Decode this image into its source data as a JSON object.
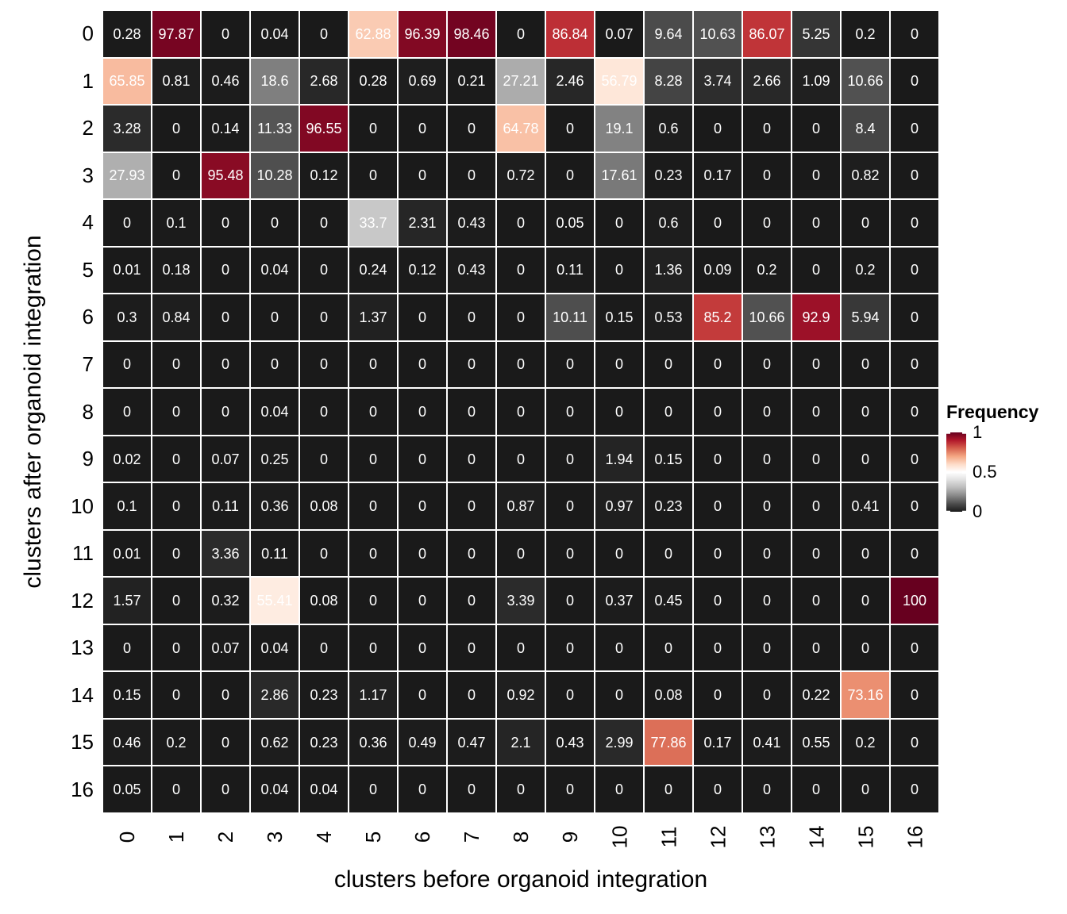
{
  "chart_data": {
    "type": "heatmap",
    "title": "",
    "xlabel": "clusters before organoid integration",
    "ylabel": "clusters after organoid integration",
    "x_categories": [
      "0",
      "1",
      "2",
      "3",
      "4",
      "5",
      "6",
      "7",
      "8",
      "9",
      "10",
      "11",
      "12",
      "13",
      "14",
      "15",
      "16"
    ],
    "y_categories": [
      "0",
      "1",
      "2",
      "3",
      "4",
      "5",
      "6",
      "7",
      "8",
      "9",
      "10",
      "11",
      "12",
      "13",
      "14",
      "15",
      "16"
    ],
    "values_are_percent_of_scale_0_to_1": true,
    "values": [
      [
        0.28,
        97.87,
        0,
        0.04,
        0,
        62.88,
        96.39,
        98.46,
        0,
        86.84,
        0.07,
        9.64,
        10.63,
        86.07,
        5.25,
        0.2,
        0
      ],
      [
        65.85,
        0.81,
        0.46,
        18.6,
        2.68,
        0.28,
        0.69,
        0.21,
        27.21,
        2.46,
        56.79,
        8.28,
        3.74,
        2.66,
        1.09,
        10.66,
        0
      ],
      [
        3.28,
        0,
        0.14,
        11.33,
        96.55,
        0,
        0,
        0,
        64.78,
        0,
        19.1,
        0.6,
        0,
        0,
        0,
        8.4,
        0
      ],
      [
        27.93,
        0,
        95.48,
        10.28,
        0.12,
        0,
        0,
        0,
        0.72,
        0,
        17.61,
        0.23,
        0.17,
        0,
        0,
        0.82,
        0
      ],
      [
        0,
        0.1,
        0,
        0,
        0,
        33.7,
        2.31,
        0.43,
        0,
        0.05,
        0,
        0.6,
        0,
        0,
        0,
        0,
        0
      ],
      [
        0.01,
        0.18,
        0,
        0.04,
        0,
        0.24,
        0.12,
        0.43,
        0,
        0.11,
        0,
        1.36,
        0.09,
        0.2,
        0,
        0.2,
        0
      ],
      [
        0.3,
        0.84,
        0,
        0,
        0,
        1.37,
        0,
        0,
        0,
        10.11,
        0.15,
        0.53,
        85.2,
        10.66,
        92.9,
        5.94,
        0
      ],
      [
        0,
        0,
        0,
        0,
        0,
        0,
        0,
        0,
        0,
        0,
        0,
        0,
        0,
        0,
        0,
        0,
        0
      ],
      [
        0,
        0,
        0,
        0.04,
        0,
        0,
        0,
        0,
        0,
        0,
        0,
        0,
        0,
        0,
        0,
        0,
        0
      ],
      [
        0.02,
        0,
        0.07,
        0.25,
        0,
        0,
        0,
        0,
        0,
        0,
        1.94,
        0.15,
        0,
        0,
        0,
        0,
        0
      ],
      [
        0.1,
        0,
        0.11,
        0.36,
        0.08,
        0,
        0,
        0,
        0.87,
        0,
        0.97,
        0.23,
        0,
        0,
        0,
        0.41,
        0
      ],
      [
        0.01,
        0,
        3.36,
        0.11,
        0,
        0,
        0,
        0,
        0,
        0,
        0,
        0,
        0,
        0,
        0,
        0,
        0
      ],
      [
        1.57,
        0,
        0.32,
        55.41,
        0.08,
        0,
        0,
        0,
        3.39,
        0,
        0.37,
        0.45,
        0,
        0,
        0,
        0,
        100
      ],
      [
        0,
        0,
        0.07,
        0.04,
        0,
        0,
        0,
        0,
        0,
        0,
        0,
        0,
        0,
        0,
        0,
        0,
        0
      ],
      [
        0.15,
        0,
        0,
        2.86,
        0.23,
        1.17,
        0,
        0,
        0.92,
        0,
        0,
        0.08,
        0,
        0,
        0.22,
        73.16,
        0
      ],
      [
        0.46,
        0.2,
        0,
        0.62,
        0.23,
        0.36,
        0.49,
        0.47,
        2.1,
        0.43,
        2.99,
        77.86,
        0.17,
        0.41,
        0.55,
        0.2,
        0
      ],
      [
        0.05,
        0,
        0,
        0.04,
        0.04,
        0,
        0,
        0,
        0,
        0,
        0,
        0,
        0,
        0,
        0,
        0,
        0
      ]
    ],
    "legend": {
      "title": "Frequency",
      "ticks": [
        {
          "label": "1",
          "value": 1
        },
        {
          "label": "0.5",
          "value": 0.5
        },
        {
          "label": "0",
          "value": 0
        }
      ]
    },
    "colormap": {
      "name": "dark-gray-to-white-to-dark-red",
      "stops": [
        "#1a1a1a",
        "#4d4d4d",
        "#878787",
        "#bababa",
        "#e0e0e0",
        "#ffffff",
        "#fddbc7",
        "#f4a582",
        "#d6604d",
        "#b2182b",
        "#67001f"
      ]
    },
    "grid_line_color": "#ffffff",
    "cell_text_color": "#ffffff",
    "value_range": [
      0,
      100
    ],
    "legend_position": "right"
  }
}
